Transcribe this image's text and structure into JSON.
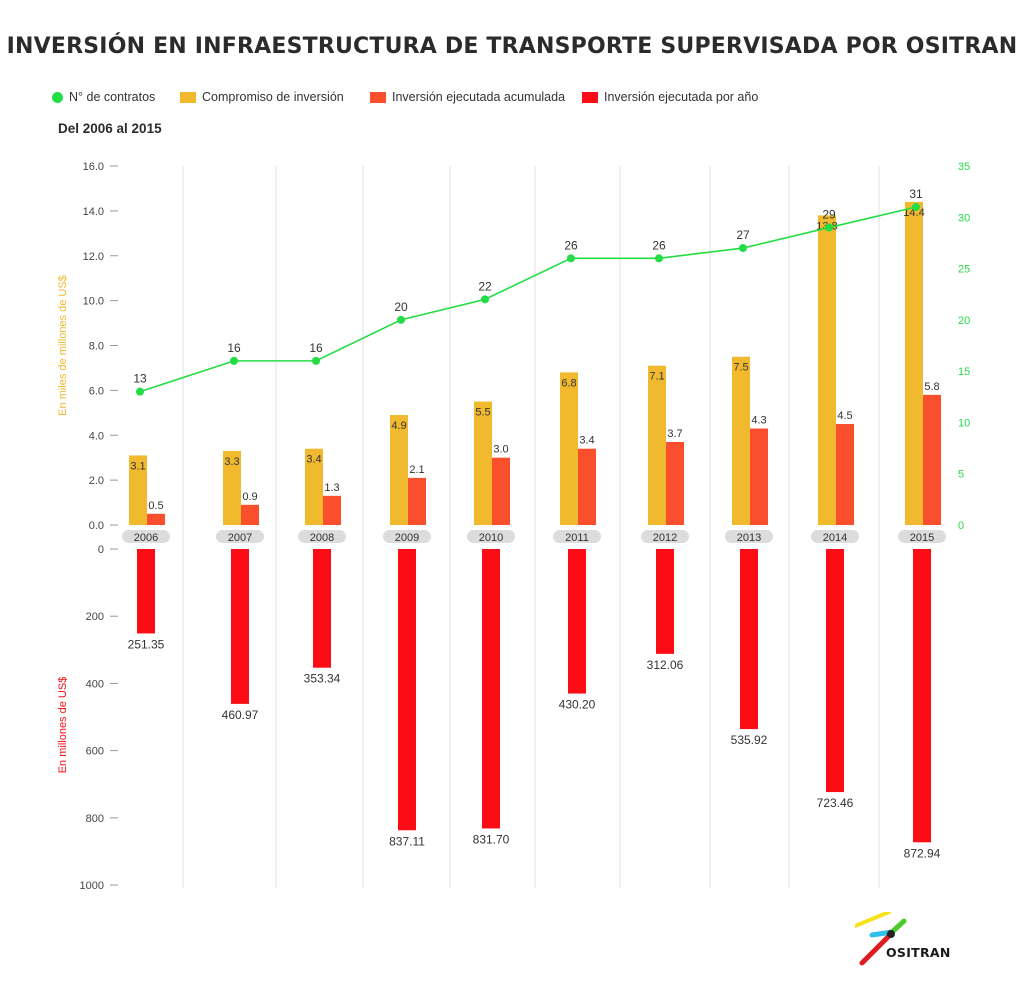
{
  "title": "INVERSIÓN EN INFRAESTRUCTURA DE TRANSPORTE SUPERVISADA POR OSITRAN",
  "subtitle": "Del 2006 al 2015",
  "legend": [
    {
      "label": "N° de contratos",
      "color": "#22dd44",
      "shape": "dot"
    },
    {
      "label": "Compromiso de inversión",
      "color": "#f0b92e",
      "shape": "rect"
    },
    {
      "label": "Inversión ejecutada acumulada",
      "color": "#fa4f2c",
      "shape": "rect"
    },
    {
      "label": "Inversión ejecutada por año",
      "color": "#fc0d16",
      "shape": "rect"
    }
  ],
  "logo": {
    "text": "OSITRAN"
  },
  "chart_data": {
    "type": "bar",
    "categories": [
      "2006",
      "2007",
      "2008",
      "2009",
      "2010",
      "2011",
      "2012",
      "2013",
      "2014",
      "2015"
    ],
    "upper": {
      "ylabel": "En miles de millones de US$",
      "ylim": [
        0,
        16
      ],
      "yticks": [
        "0.0",
        "2.0",
        "4.0",
        "6.0",
        "8.0",
        "10.0",
        "12.0",
        "14.0",
        "16.0"
      ],
      "y2lim": [
        0,
        35
      ],
      "y2ticks": [
        "0",
        "5",
        "10",
        "15",
        "20",
        "25",
        "30",
        "35"
      ],
      "series": [
        {
          "name": "Compromiso de inversión",
          "type": "bar",
          "color": "#f0b92e",
          "values": [
            3.1,
            3.3,
            3.4,
            4.9,
            5.5,
            6.8,
            7.1,
            7.5,
            13.8,
            14.4
          ],
          "labels": [
            "3.1",
            "3.3",
            "3.4",
            "4.9",
            "5.5",
            "6.8",
            "7.1",
            "7.5",
            "13.8",
            "14.4"
          ]
        },
        {
          "name": "Inversión ejecutada acumulada",
          "type": "bar",
          "color": "#fa4f2c",
          "values": [
            0.5,
            0.9,
            1.3,
            2.1,
            3.0,
            3.4,
            3.7,
            4.3,
            4.5,
            5.8
          ],
          "labels": [
            "0.5",
            "0.9",
            "1.3",
            "2.1",
            "3.0",
            "3.4",
            "3.7",
            "4.3",
            "4.5",
            "5.8"
          ]
        },
        {
          "name": "N° de contratos",
          "type": "line",
          "axis": "right",
          "color": "#22dd44",
          "values": [
            13,
            16,
            16,
            20,
            22,
            26,
            26,
            27,
            29,
            31
          ],
          "labels": [
            "13",
            "16",
            "16",
            "20",
            "22",
            "26",
            "26",
            "27",
            "29",
            "31"
          ]
        }
      ]
    },
    "lower": {
      "ylabel": "En millones de US$",
      "ylim": [
        0,
        1000
      ],
      "inverted": true,
      "yticks": [
        "0",
        "200",
        "400",
        "600",
        "800",
        "1000"
      ],
      "series": [
        {
          "name": "Inversión ejecutada por año",
          "type": "bar",
          "color": "#fc0d16",
          "values": [
            251.35,
            460.97,
            353.34,
            837.11,
            831.7,
            430.2,
            312.06,
            535.92,
            723.46,
            872.94
          ],
          "labels": [
            "251.35",
            "460.97",
            "353.34",
            "837.11",
            "831.70",
            "430.20",
            "312.06",
            "535.92",
            "723.46",
            "872.94"
          ]
        }
      ]
    },
    "grid": "vertical-separators"
  }
}
